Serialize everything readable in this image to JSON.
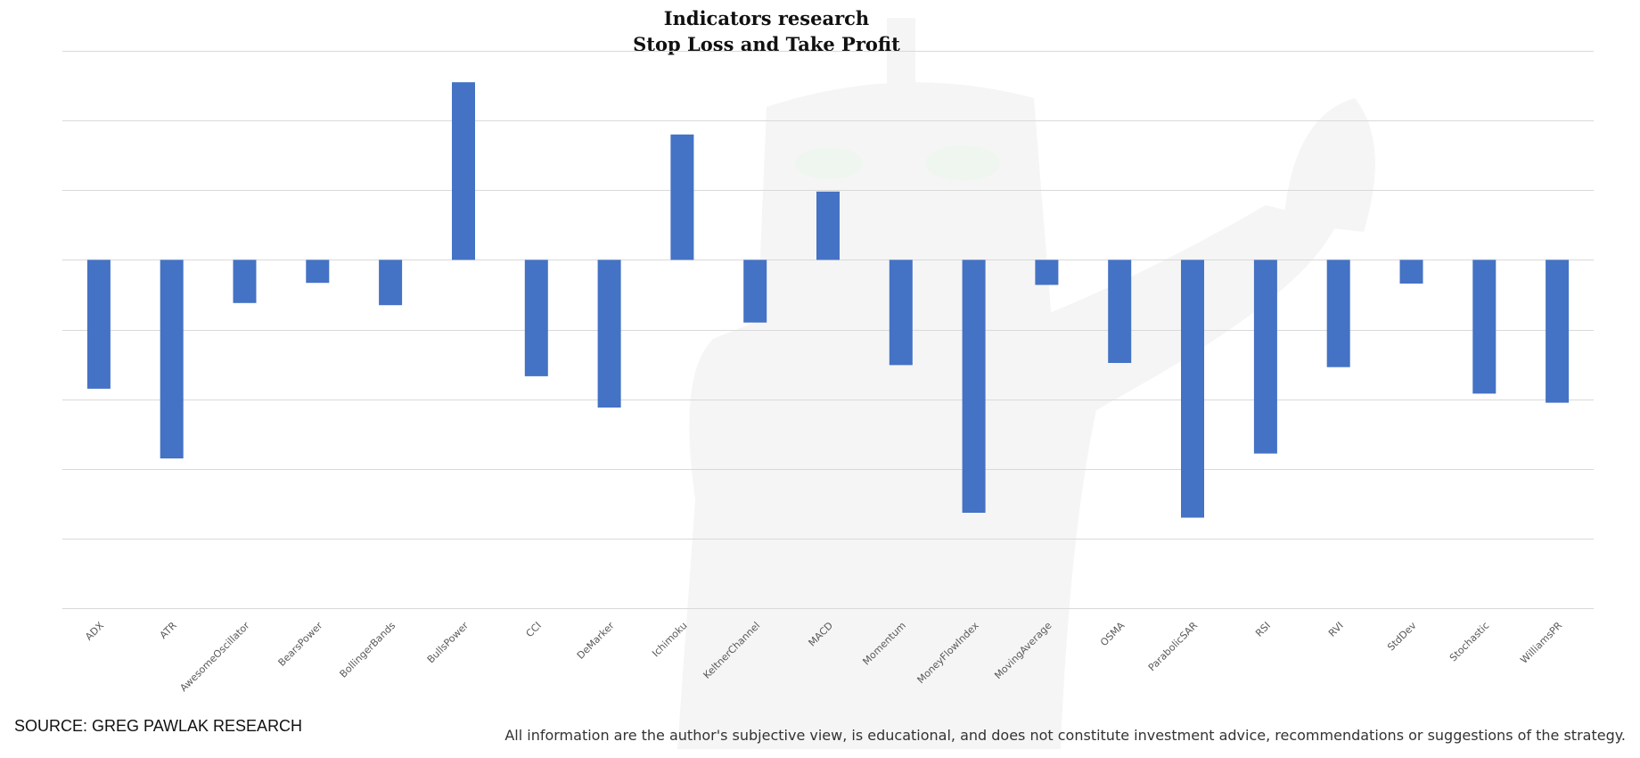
{
  "page": {
    "source": "SOURCE: GREG PAWLAK RESEARCH",
    "disclaimer": "All information are the author's subjective view, is educational, and does not constitute investment advice, recommendations or suggestions of the strategy."
  },
  "colors": {
    "bar": "#4472c4",
    "grid": "#d9d9d9",
    "tick_label": "#595959"
  },
  "chart_data": {
    "type": "bar",
    "title_lines": [
      "Indicators research",
      "Stop Loss and Take Profit"
    ],
    "xlabel": "",
    "ylabel": "",
    "y_tick_labels_visible": false,
    "grid": true,
    "legend": "none",
    "ylim": [
      -5,
      3
    ],
    "categories": [
      "ADX",
      "ATR",
      "AwesomeOscillator",
      "BearsPower",
      "BollingerBands",
      "BullsPower",
      "CCI",
      "DeMarker",
      "Ichimoku",
      "KeltnerChannel",
      "MACD",
      "Momentum",
      "MoneyFlowIndex",
      "MovingAverage",
      "OSMA",
      "ParabolicSAR",
      "RSI",
      "RVI",
      "StdDev",
      "Stochastic",
      "WilliamsPR"
    ],
    "values": [
      -1.85,
      -2.85,
      -0.62,
      -0.33,
      -0.65,
      2.55,
      -1.67,
      -2.12,
      1.8,
      -0.9,
      0.98,
      -1.51,
      -3.63,
      -0.36,
      -1.48,
      -3.7,
      -2.78,
      -1.54,
      -0.34,
      -1.92,
      -2.05
    ]
  }
}
